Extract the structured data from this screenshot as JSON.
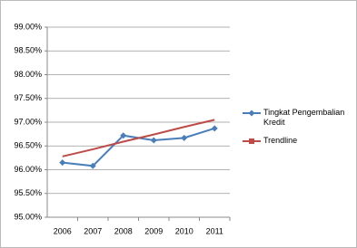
{
  "chart_data": {
    "type": "line",
    "categories": [
      "2006",
      "2007",
      "2008",
      "2009",
      "2010",
      "2011"
    ],
    "series": [
      {
        "name": "Tingkat Pengembalian Kredit",
        "color": "#4a7ebb",
        "values": [
          96.15,
          96.08,
          96.72,
          96.62,
          96.67,
          96.87
        ]
      },
      {
        "name": "Trendline",
        "color": "#be4b48",
        "values": [
          96.28,
          96.43,
          96.59,
          96.74,
          96.9,
          97.05
        ]
      }
    ],
    "ylim": [
      95,
      99
    ],
    "yticks": [
      {
        "value": 95,
        "label": "95.00%"
      },
      {
        "value": 95.5,
        "label": "95.50%"
      },
      {
        "value": 96,
        "label": "96.00%"
      },
      {
        "value": 96.5,
        "label": "96.50%"
      },
      {
        "value": 97,
        "label": "97.00%"
      },
      {
        "value": 97.5,
        "label": "97.50%"
      },
      {
        "value": 98,
        "label": "98.00%"
      },
      {
        "value": 98.5,
        "label": "98.50%"
      },
      {
        "value": 99,
        "label": "99.00%"
      }
    ],
    "grid": true
  }
}
